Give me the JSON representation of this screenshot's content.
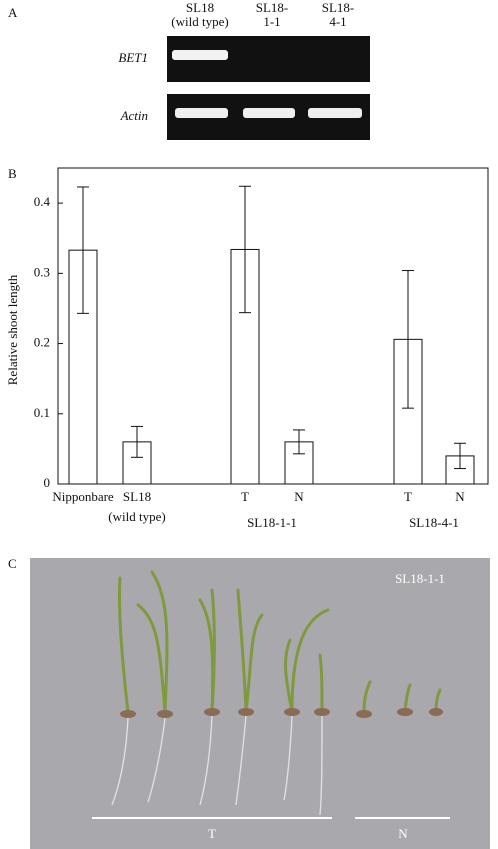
{
  "panel_a": {
    "label": "A",
    "columns": [
      [
        "SL18",
        "(wild type)"
      ],
      [
        "SL18-",
        "1-1"
      ],
      [
        "SL18-",
        "4-1"
      ]
    ],
    "rows": [
      "BET1",
      "Actin"
    ]
  },
  "chart_data": {
    "type": "bar",
    "panel_label": "B",
    "ylabel": "Relative shoot length",
    "categories": [
      "Nipponbare",
      "SL18",
      "T",
      "N",
      "T",
      "N"
    ],
    "category_sublabels": [
      null,
      "(wild type)",
      null,
      null,
      null,
      null
    ],
    "groups": [
      "SL18-1-1",
      "SL18-4-1"
    ],
    "values": [
      0.333,
      0.06,
      0.334,
      0.06,
      0.206,
      0.04
    ],
    "errors": [
      0.09,
      0.022,
      0.09,
      0.017,
      0.098,
      0.018
    ],
    "color": "#ffffff",
    "ylim": [
      0,
      0.45
    ],
    "yticks": [
      0,
      0.1,
      0.2,
      0.3,
      0.4
    ],
    "grid": false
  },
  "panel_c": {
    "label": "C",
    "photo_title": "SL18-1-1",
    "groups": [
      "T",
      "N"
    ]
  }
}
